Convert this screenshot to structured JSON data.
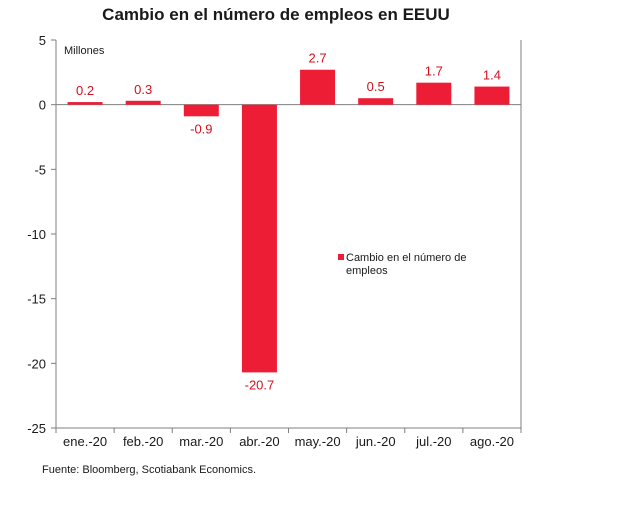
{
  "chart_data": {
    "type": "bar",
    "title": "Cambio en el número de empleos en EEUU",
    "unit_label": "Millones",
    "categories": [
      "ene.-20",
      "feb.-20",
      "mar.-20",
      "abr.-20",
      "may.-20",
      "jun.-20",
      "jul.-20",
      "ago.-20"
    ],
    "series": [
      {
        "name": "Cambio en el número de empleos",
        "values": [
          0.2,
          0.3,
          -0.9,
          -20.7,
          2.7,
          0.5,
          1.7,
          1.4
        ]
      }
    ],
    "data_labels": [
      "0.2",
      "0.3",
      "-0.9",
      "-20.7",
      "2.7",
      "0.5",
      "1.7",
      "1.4"
    ],
    "ylim": [
      -25,
      5
    ],
    "yticks": [
      5,
      0,
      -5,
      -10,
      -15,
      -20,
      -25
    ],
    "legend_lines": [
      "Cambio en el número de",
      "empleos"
    ],
    "legend_position": "right",
    "grid": false,
    "colors": {
      "bar": "#ee1d36",
      "label": "#d4101f",
      "axis": "#7f7f7f"
    }
  },
  "source": "Fuente: Bloomberg, Scotiabank Economics."
}
